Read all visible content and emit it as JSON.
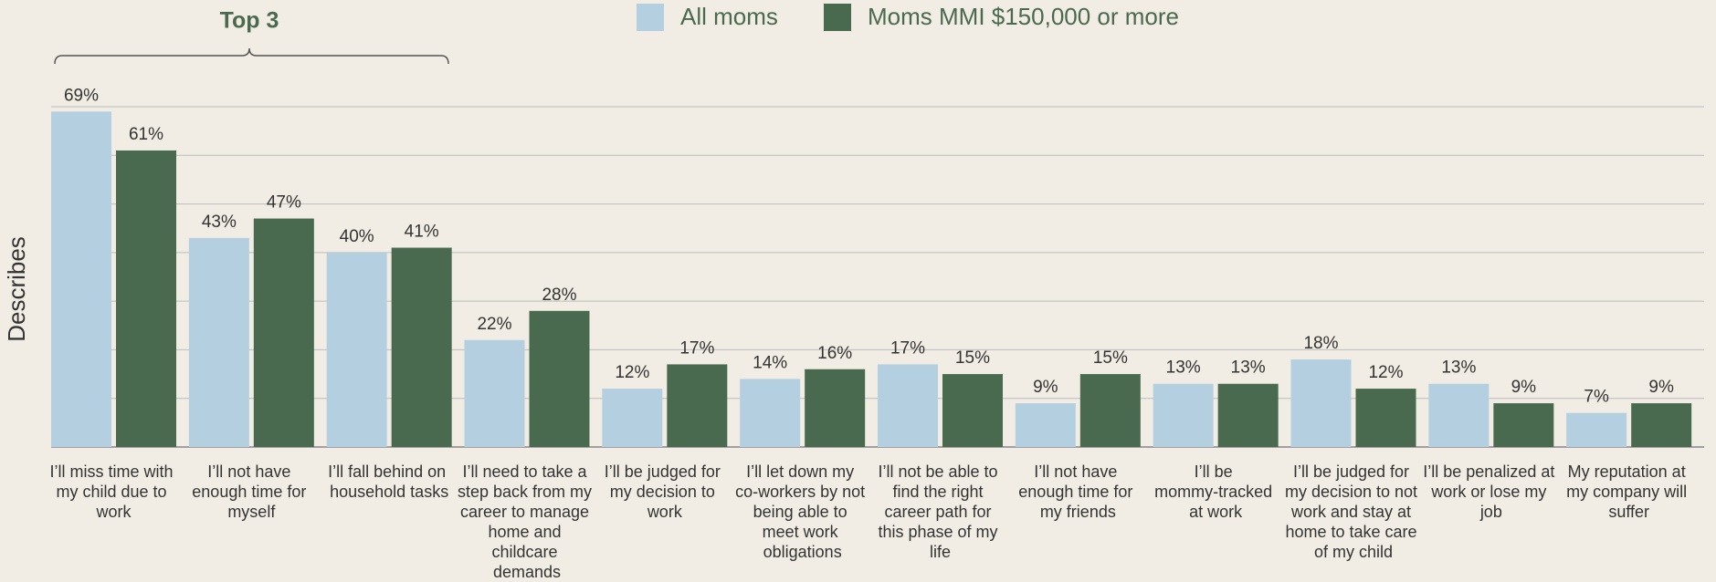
{
  "chart_data": {
    "type": "bar",
    "annotation": "Top 3",
    "ylabel": "Describes",
    "categories": [
      "I’ll miss time with my child due to work",
      "I’ll not have enough time for myself",
      "I’ll fall behind on household tasks",
      "I’ll need to take a step back from my career to manage home and childcare demands",
      "I’ll be judged for my decision to work",
      "I’ll let down my co-workers by not being able to meet work obligations",
      "I’ll not be able to find the right career path for this phase of my life",
      "I’ll not have enough time for my friends",
      "I’ll be mommy-tracked at work",
      "I’ll  be judged for my decision to not work and stay at home to take care of my child",
      "I’ll be penalized at work or lose my job",
      "My reputation at my company will suffer"
    ],
    "series": [
      {
        "name": "All moms",
        "color": "#b3cfe0",
        "values": [
          69,
          43,
          40,
          22,
          12,
          14,
          17,
          9,
          13,
          18,
          13,
          7
        ],
        "value_labels": [
          "69%",
          "43%",
          "40%",
          "22%",
          "12%",
          "14%",
          "17%",
          "9%",
          "13%",
          "18%",
          "13%",
          "7%"
        ]
      },
      {
        "name": "Moms MMI $150,000 or more",
        "color": "#4a6a50",
        "values": [
          61,
          47,
          41,
          28,
          17,
          16,
          15,
          15,
          13,
          12,
          9,
          9
        ],
        "value_labels": [
          "61%",
          "47%",
          "41%",
          "28%",
          "17%",
          "16%",
          "15%",
          "15%",
          "13%",
          "12%",
          "9%",
          "9%"
        ]
      }
    ],
    "ylim": [
      0,
      70
    ],
    "yticks": [
      0,
      10,
      20,
      30,
      40,
      50,
      60,
      70
    ],
    "grid": true
  }
}
